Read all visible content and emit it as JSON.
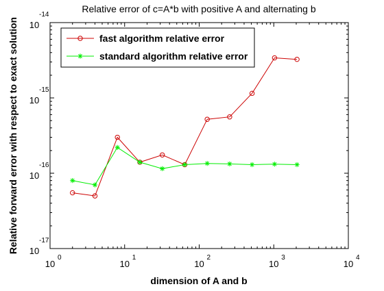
{
  "chart_data": {
    "type": "line",
    "title": "Relative error of c=A*b with positive A and alternating b",
    "xlabel": "dimension of A and b",
    "ylabel": "Relative forward error with respect to exact solution",
    "xscale": "log",
    "yscale": "log",
    "xlim": [
      1,
      10000
    ],
    "ylim": [
      1e-17,
      1e-14
    ],
    "xticks": [
      {
        "value": 1,
        "base": "10",
        "exp": "0"
      },
      {
        "value": 10,
        "base": "10",
        "exp": "1"
      },
      {
        "value": 100,
        "base": "10",
        "exp": "2"
      },
      {
        "value": 1000,
        "base": "10",
        "exp": "3"
      },
      {
        "value": 10000,
        "base": "10",
        "exp": "4"
      }
    ],
    "yticks": [
      {
        "value": 1e-17,
        "base": "10",
        "exp": "-17"
      },
      {
        "value": 1e-16,
        "base": "10",
        "exp": "-16"
      },
      {
        "value": 1e-15,
        "base": "10",
        "exp": "-15"
      },
      {
        "value": 1e-14,
        "base": "10",
        "exp": "-14"
      }
    ],
    "grid": false,
    "legend_position": "top-left",
    "x": [
      2,
      4,
      8,
      16,
      32,
      64,
      128,
      256,
      512,
      1024,
      2048
    ],
    "series": [
      {
        "name": "fast algorithm relative error",
        "color": "#cc0000",
        "marker": "circle",
        "values": [
          5.5e-17,
          5e-17,
          3e-16,
          1.4e-16,
          1.75e-16,
          1.3e-16,
          5.2e-16,
          5.6e-16,
          1.15e-15,
          3.4e-15,
          3.25e-15
        ]
      },
      {
        "name": "standard algorithm relative error",
        "color": "#00ee00",
        "marker": "star",
        "values": [
          8e-17,
          7e-17,
          2.2e-16,
          1.4e-16,
          1.15e-16,
          1.3e-16,
          1.35e-16,
          1.33e-16,
          1.3e-16,
          1.32e-16,
          1.3e-16
        ]
      }
    ]
  }
}
